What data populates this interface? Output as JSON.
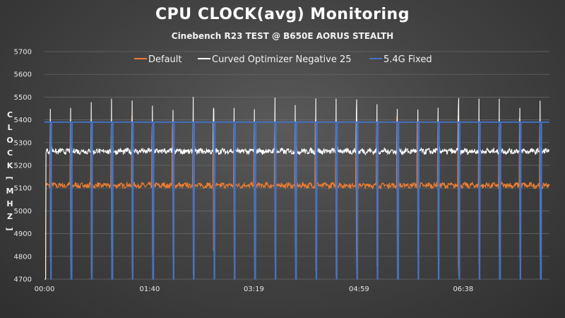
{
  "chart_data": {
    "type": "line",
    "title": "CPU CLOCK(avg) Monitoring",
    "subtitle": "Cinebench R23 TEST @ B650E AORUS STEALTH",
    "ylabel": "CLOCK [MHZ]",
    "xlabel": "",
    "ylim": [
      4700,
      5700
    ],
    "yticks": [
      "5700",
      "5600",
      "5500",
      "5400",
      "5300",
      "5200",
      "5100",
      "5000",
      "4900",
      "4800",
      "4700"
    ],
    "xticks": [
      "00:00",
      "01:40",
      "03:19",
      "04:59",
      "06:38"
    ],
    "xlim_seconds": [
      0,
      480
    ],
    "grid": true,
    "legend_position": "top",
    "series": [
      {
        "name": "Default",
        "color": "#ed7d31",
        "baseline_mhz": 5112,
        "run_peak_mhz": 5130,
        "gap_peak_mhz": 5420
      },
      {
        "name": "Curved Optimizer Negative 25",
        "color": "#ffffff",
        "baseline_mhz": 5262,
        "run_peak_mhz": 5285,
        "gap_peak_mhz": 5500
      },
      {
        "name": "5.4G Fixed",
        "color": "#4472c4",
        "baseline_mhz": 5390,
        "run_peak_mhz": 5392,
        "gap_peak_mhz": 5390
      }
    ]
  }
}
